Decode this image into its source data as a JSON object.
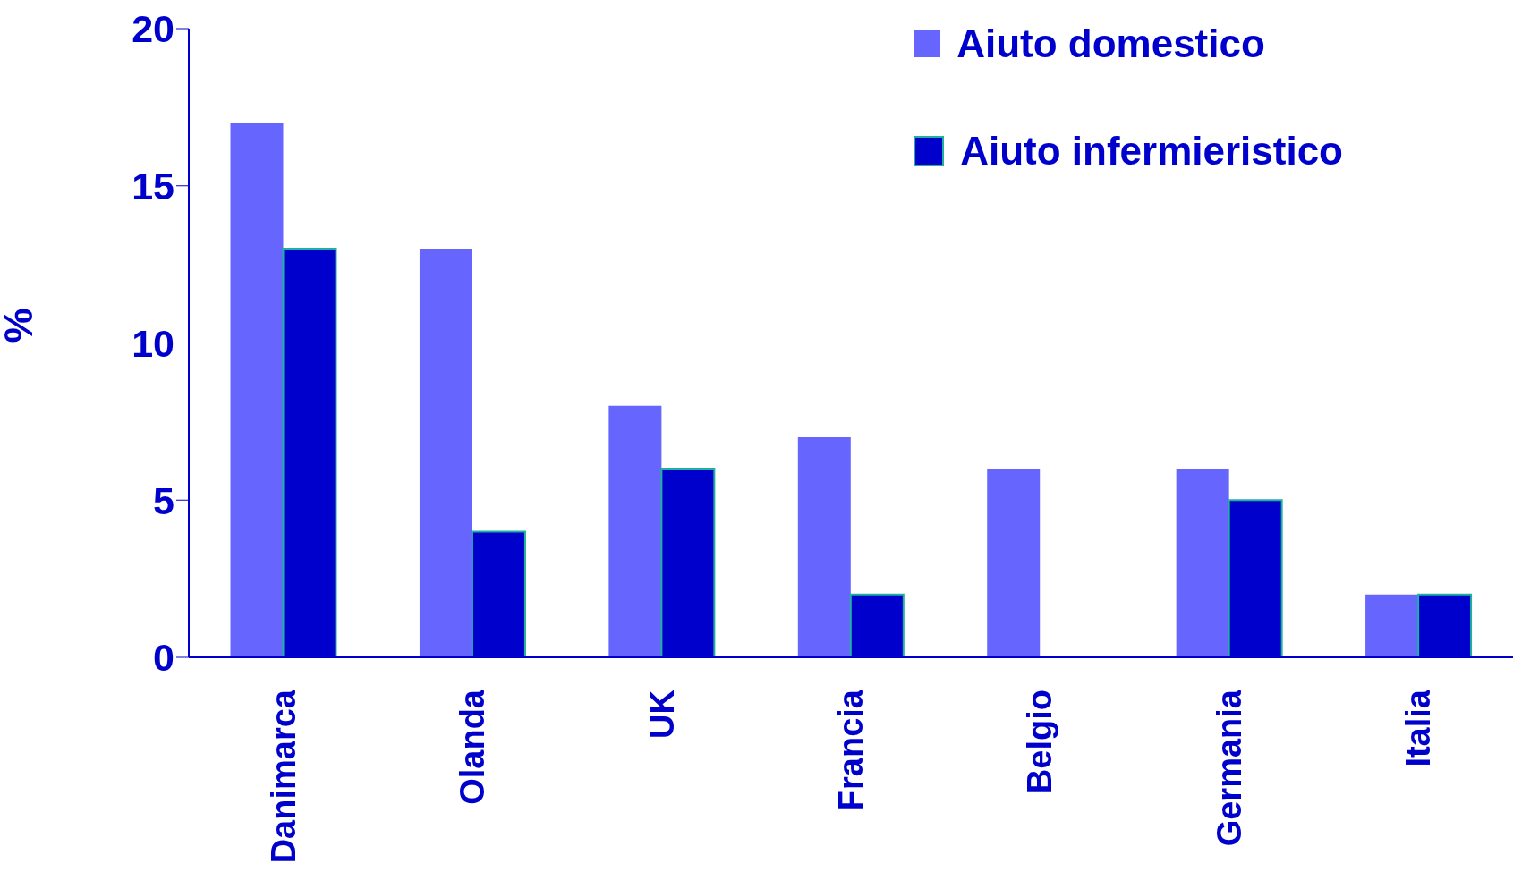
{
  "chart_data": {
    "type": "bar",
    "ylabel": "%",
    "categories": [
      "Danimarca",
      "Olanda",
      "UK",
      "Francia",
      "Belgio",
      "Germania",
      "Italia"
    ],
    "series": [
      {
        "name": "Aiuto domestico",
        "color": "#6666ff",
        "values": [
          17,
          13,
          8,
          7,
          6,
          6,
          2
        ]
      },
      {
        "name": "Aiuto infermieristico",
        "color": "#0000cc",
        "values": [
          13,
          4,
          6,
          2,
          null,
          5,
          2
        ]
      }
    ],
    "ylim": [
      0,
      20
    ],
    "yticks": [
      0,
      5,
      10,
      15,
      20
    ],
    "grid": false,
    "legend": "top right"
  }
}
